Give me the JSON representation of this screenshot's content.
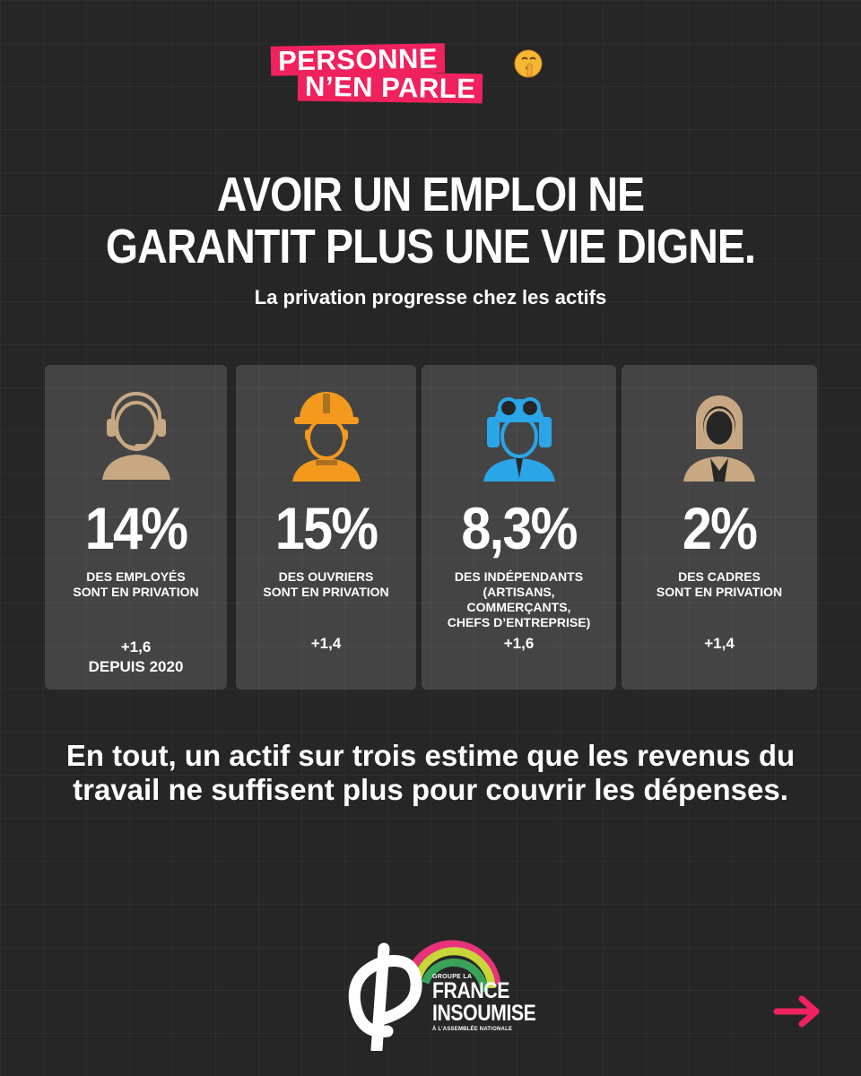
{
  "badge": {
    "line1": "PERSONNE",
    "line2": "N’EN PARLE",
    "emoji_icon": "shushing-face-icon"
  },
  "headline": {
    "line1": "AVOIR UN EMPLOI NE",
    "line2": "GARANTIT PLUS UNE VIE DIGNE."
  },
  "subtitle": "La privation progresse chez les actifs",
  "cards": [
    {
      "icon": "call-center-worker-icon",
      "icon_color": "#c8a883",
      "percent": "14%",
      "description": "DES EMPLOYÉS\nSONT EN PRIVATION",
      "delta": "+1,6\nDEPUIS 2020"
    },
    {
      "icon": "construction-worker-icon",
      "icon_color": "#f39a1e",
      "percent": "15%",
      "description": "DES OUVRIERS\nSONT EN PRIVATION",
      "delta": "+1,4"
    },
    {
      "icon": "aviator-icon",
      "icon_color": "#2aa6e8",
      "percent": "8,3%",
      "description": "DES INDÉPENDANTS\n(ARTISANS,\nCOMMERÇANTS,\nCHEFS D’ENTREPRISE)",
      "delta": "+1,6"
    },
    {
      "icon": "businesswoman-icon",
      "icon_color": "#c8a883",
      "percent": "2%",
      "description": "DES CADRES\nSONT EN PRIVATION",
      "delta": "+1,4"
    }
  ],
  "conclusion": "En tout, un actif sur trois estime que les revenus du travail ne suffisent plus pour couvrir les dépenses.",
  "logo": {
    "small_top": "GROUPE LA",
    "line1": "FRANCE",
    "line2": "INSOUMISE",
    "small_bottom": "À L’ASSEMBLÉE NATIONALE"
  },
  "colors": {
    "accent": "#f0225e",
    "background": "#262626"
  },
  "next_icon": "arrow-right-icon"
}
